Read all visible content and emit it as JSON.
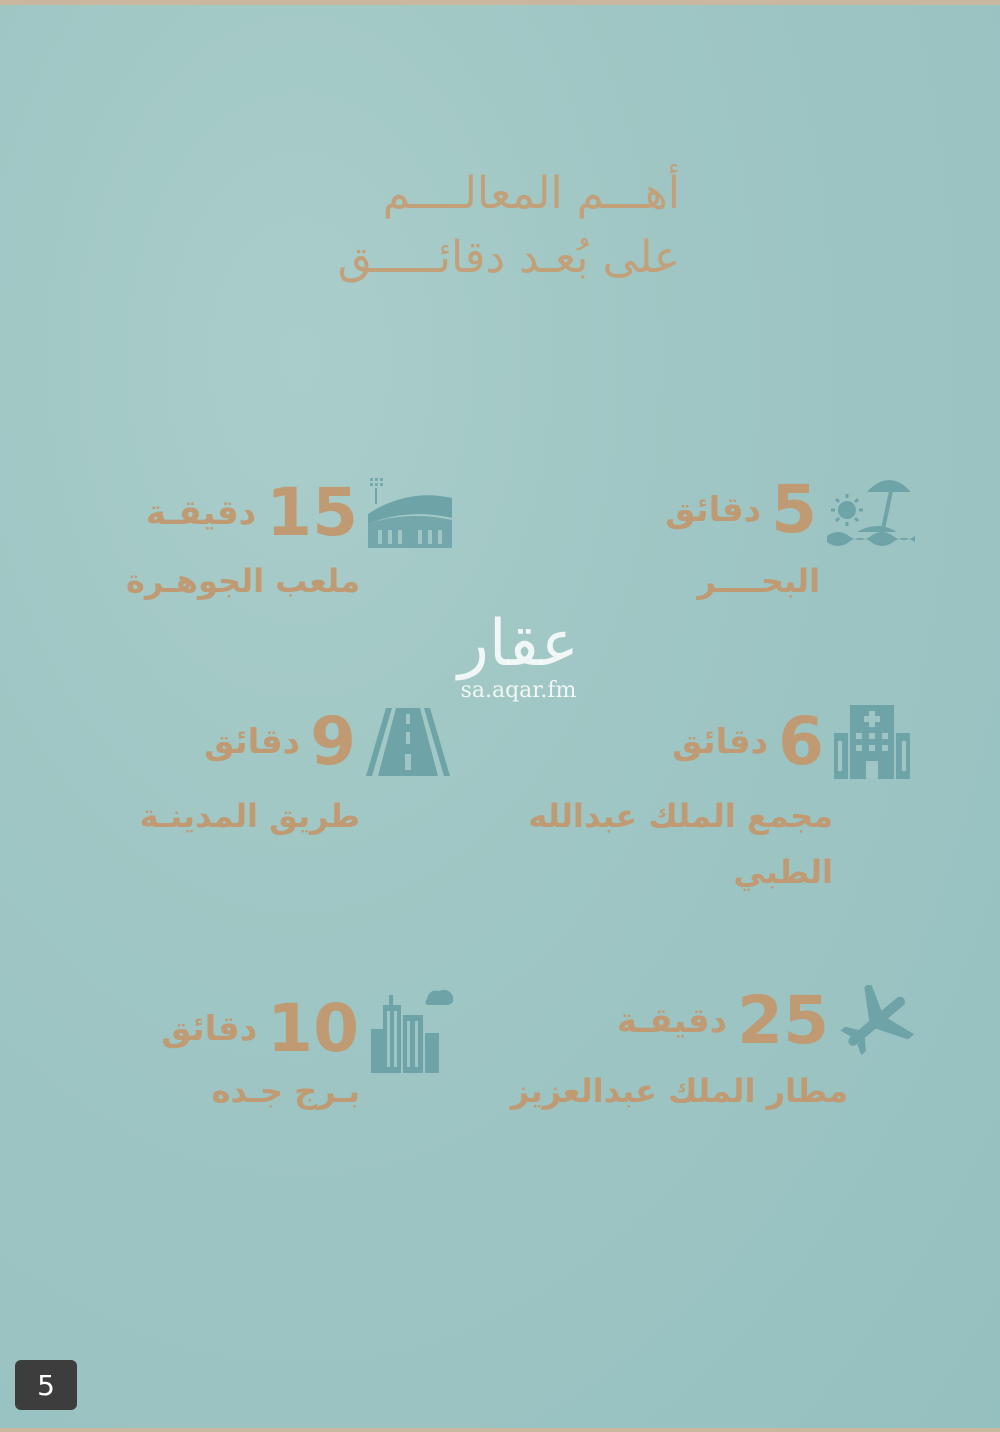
{
  "title": {
    "line1": "أهـــم المعالــــم",
    "line2": "على بُعـد دقائـــــق"
  },
  "colors": {
    "background": "#9fc6c4",
    "accent_text": "#bf9a72",
    "icon": "#6ea3a8"
  },
  "landmarks": [
    {
      "time": "5",
      "unit": "دقائق",
      "label": "البحــــر",
      "icon": "beach-umbrella-icon"
    },
    {
      "time": "15",
      "unit": "دقيقـة",
      "label": "ملعب الجوهـرة",
      "icon": "stadium-icon"
    },
    {
      "time": "6",
      "unit": "دقائق",
      "label": "مجمع الملك عبدالله",
      "label2": "الطبي",
      "icon": "hospital-icon"
    },
    {
      "time": "9",
      "unit": "دقائق",
      "label": "طريق المدينـة",
      "icon": "road-icon"
    },
    {
      "time": "25",
      "unit": "دقيقـة",
      "label": "مطار الملك عبدالعزيز",
      "icon": "airplane-icon"
    },
    {
      "time": "10",
      "unit": "دقائق",
      "label": "بـرج جـده",
      "icon": "tower-icon"
    }
  ],
  "watermark": {
    "brand": "عقار",
    "url": "sa.aqar.fm"
  },
  "page_number": "5"
}
